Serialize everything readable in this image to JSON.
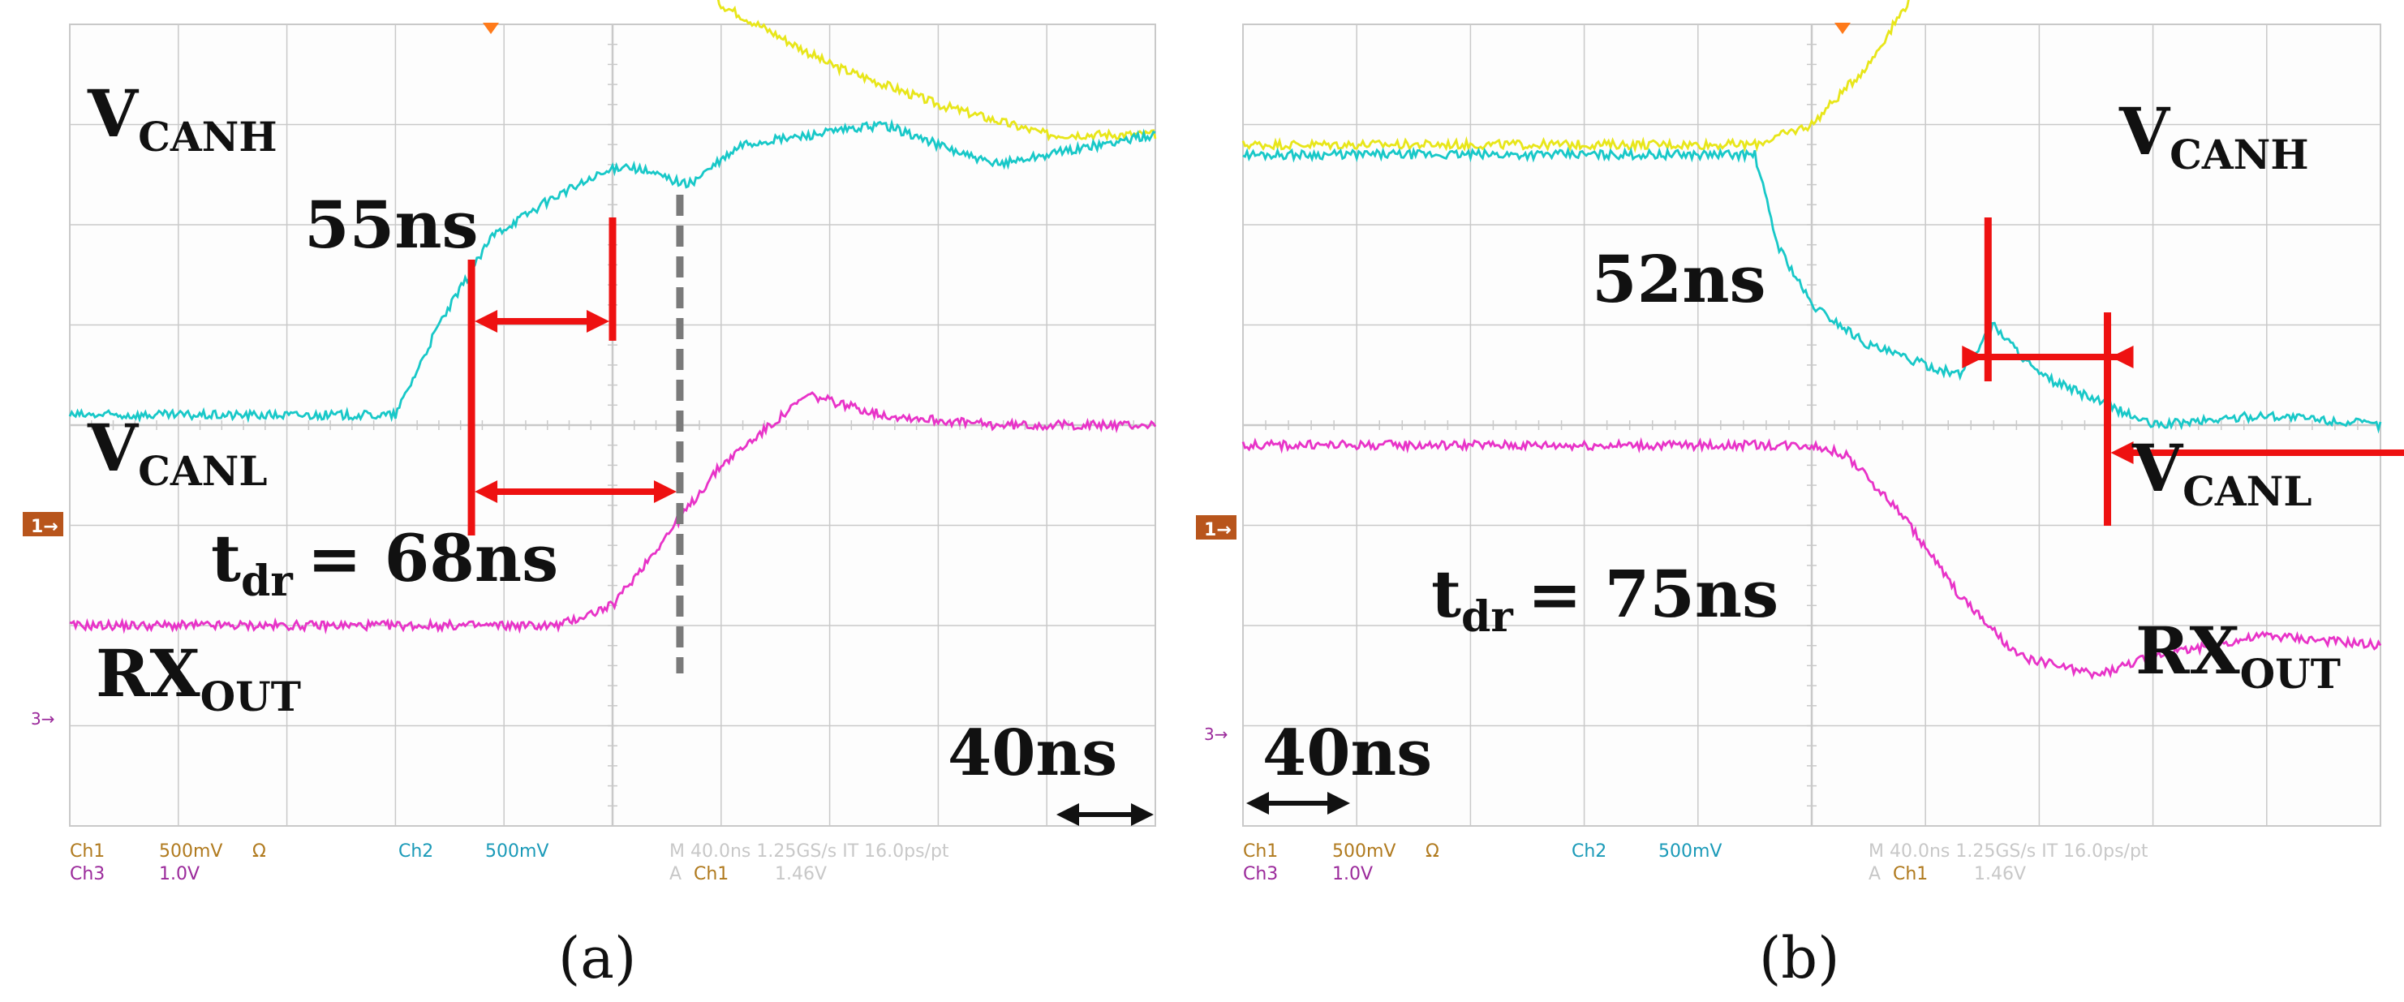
{
  "scope": {
    "ch1_label": "Ch1",
    "ch1_scale": "500mV",
    "ch1_coupling": "Ω",
    "ch2_label": "Ch2",
    "ch2_scale": "500mV",
    "ch3_label": "Ch3",
    "ch3_scale": "1.0V",
    "timebase_line": "M 40.0ns 1.25GS/s   IT 16.0ps/pt",
    "trigger_label": "A",
    "trigger_channel": "Ch1",
    "trigger_level": "1.46V",
    "marker_ch1": "1",
    "marker_ch3": "3"
  },
  "colors": {
    "grid_bg": "#fdfdfd",
    "grid_line": "#c9c9c9",
    "vcanh": "#e8e61a",
    "vcanl": "#18c8c8",
    "rxout": "#e833c8",
    "annotation": "#ee1111",
    "cursor": "#7a7a7a",
    "ch1_marker": "#b8551c",
    "ch3_marker": "#9b2a9b"
  },
  "chart_data": [
    {
      "type": "line",
      "panel": "(a)",
      "time_per_division": "40ns",
      "divisions": {
        "x": 10,
        "y": 8
      },
      "series": [
        {
          "name": "VCANH",
          "sub": "CANH",
          "x_div": [
            0,
            3,
            4,
            5,
            5.5,
            6,
            6.5,
            7,
            8,
            9,
            10
          ],
          "y_div": [
            6.5,
            6.5,
            6.0,
            5.3,
            5.0,
            4.2,
            3.9,
            3.6,
            3.2,
            2.9,
            2.9
          ]
        },
        {
          "name": "VCANL",
          "sub": "CANL",
          "x_div": [
            0,
            3,
            3.4,
            3.9,
            4.5,
            5.1,
            5.7,
            6.2,
            7.5,
            8.5,
            9.0,
            10
          ],
          "y_div": [
            0.1,
            0.1,
            1.0,
            1.9,
            2.3,
            2.6,
            2.4,
            2.8,
            3.0,
            2.6,
            2.7,
            2.9
          ]
        },
        {
          "name": "RXOUT",
          "sub": "OUT",
          "x_div": [
            0,
            4.5,
            5.0,
            5.5,
            6.0,
            6.8,
            7.5,
            8.5,
            10
          ],
          "y_div": [
            -2.0,
            -2.0,
            -1.8,
            -1.1,
            -0.4,
            0.3,
            0.1,
            0.0,
            0.0
          ]
        }
      ],
      "annotations": {
        "short_delay": "55ns",
        "td_main": "t",
        "td_sub": "dr",
        "td_value": "= 68ns",
        "timescale": "40ns",
        "label_vcanh": "V",
        "label_vcanl": "V",
        "label_rx": "RX"
      },
      "markers": {
        "line1_x_div": 3.7,
        "line2_x_div": 5.0,
        "cursor_x_div": 5.62
      },
      "caption": "(a)"
    },
    {
      "type": "line",
      "panel": "(b)",
      "time_per_division": "40ns",
      "divisions": {
        "x": 10,
        "y": 8
      },
      "series": [
        {
          "name": "VCANH",
          "sub": "CANH",
          "x_div": [
            0,
            4.5,
            5.0,
            5.5,
            6.0,
            6.5,
            7.0,
            7.5,
            8.0,
            9.0,
            10
          ],
          "y_div": [
            2.8,
            2.8,
            3.0,
            3.6,
            4.5,
            5.2,
            5.0,
            5.3,
            5.8,
            6.4,
            6.2
          ]
        },
        {
          "name": "VCANL",
          "sub": "CANL",
          "x_div": [
            0,
            4.5,
            4.7,
            5.0,
            5.5,
            6.0,
            6.3,
            6.6,
            7.0,
            8.0,
            9.0,
            10
          ],
          "y_div": [
            2.7,
            2.7,
            1.8,
            1.2,
            0.8,
            0.6,
            0.5,
            1.0,
            0.5,
            0.0,
            0.1,
            0.0
          ]
        },
        {
          "name": "RXOUT",
          "sub": "OUT",
          "x_div": [
            0,
            5.0,
            5.3,
            5.8,
            6.3,
            6.8,
            7.5,
            8.0,
            9.0,
            10
          ],
          "y_div": [
            -0.2,
            -0.2,
            -0.3,
            -0.9,
            -1.7,
            -2.3,
            -2.5,
            -2.3,
            -2.1,
            -2.2
          ]
        }
      ],
      "annotations": {
        "short_delay": "52ns",
        "td_main": "t",
        "td_sub": "dr",
        "td_value": "= 75ns",
        "timescale": "40ns",
        "label_vcanh": "V",
        "label_vcanl": "V",
        "label_rx": "RX"
      },
      "markers": {
        "line1_x_div": 7.6,
        "line2_x_div": 9.7,
        "cursor_x_div": 11.1
      },
      "caption": "(b)"
    }
  ]
}
